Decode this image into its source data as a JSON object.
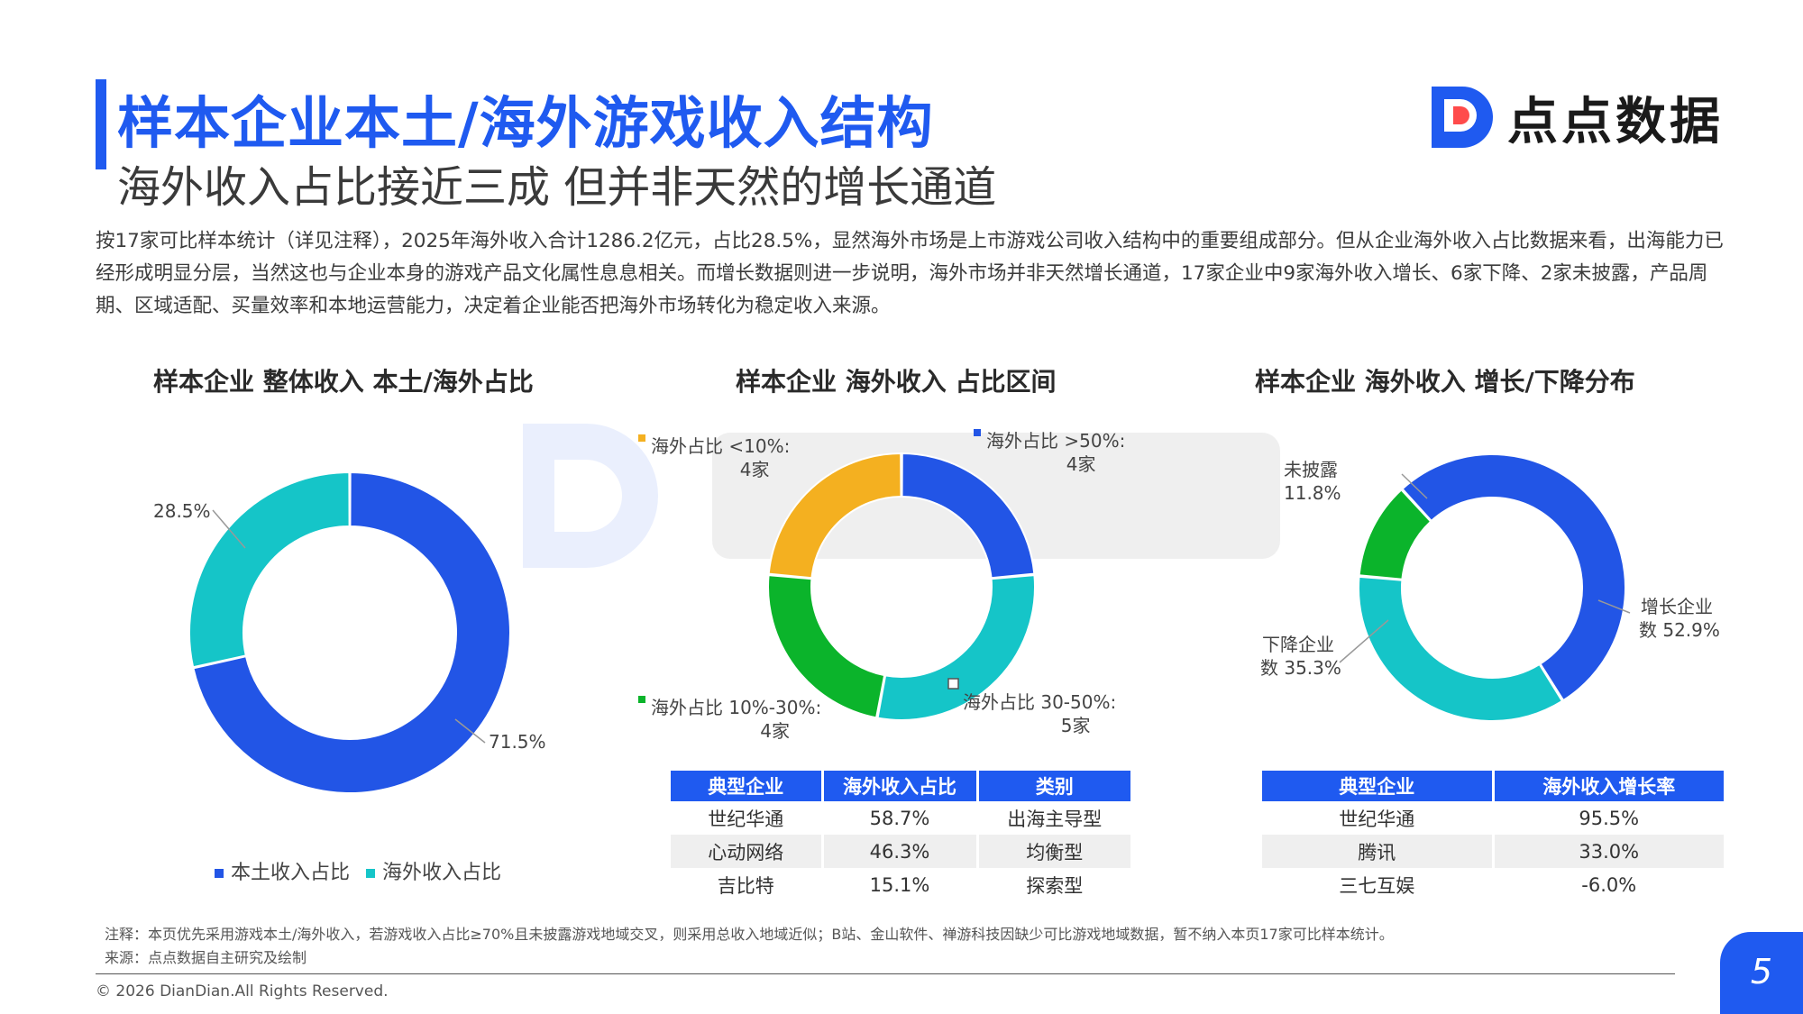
{
  "header": {
    "title": "样本企业本土/海外游戏收入结构",
    "subtitle": "海外收入占比接近三成 但并非天然的增长通道",
    "brand": "点点数据"
  },
  "intro": "按17家可比样本统计（详见注释），2025年海外收入合计1286.2亿元，占比28.5%，显然海外市场是上市游戏公司收入结构中的重要组成部分。但从企业海外收入占比数据来看，出海能力已经形成明显分层，当然这也与企业本身的游戏产品文化属性息息相关。而增长数据则进一步说明，海外市场并非天然增长通道，17家企业中9家海外收入增长、6家下降、2家未披露，产品周期、区域适配、买量效率和本地运营能力，决定着企业能否把海外市场转化为稳定收入来源。",
  "colors": {
    "blue": "#2255e6",
    "teal": "#15c5c8",
    "yellow": "#f4b020",
    "green": "#0bb42b",
    "accent": "#1f5af0"
  },
  "chart_data": [
    {
      "type": "pie",
      "title": "样本企业 整体收入 本土/海外占比",
      "slices": [
        {
          "name": "本土收入占比",
          "value": 71.5,
          "label": "71.5%",
          "color": "#2255e6"
        },
        {
          "name": "海外收入占比",
          "value": 28.5,
          "label": "28.5%",
          "color": "#15c5c8"
        }
      ],
      "legend": [
        "本土收入占比",
        "海外收入占比"
      ],
      "legend_position": "bottom"
    },
    {
      "type": "pie",
      "title": "样本企业 海外收入 占比区间",
      "slices": [
        {
          "name": "海外占比 >50%",
          "value": 4,
          "label_line1": "海外占比 >50%:",
          "label_line2": "4家",
          "color": "#2255e6"
        },
        {
          "name": "海外占比 30-50%",
          "value": 5,
          "label_line1": "海外占比 30-50%:",
          "label_line2": "5家",
          "color": "#15c5c8"
        },
        {
          "name": "海外占比 10%-30%",
          "value": 4,
          "label_line1": "海外占比 10%-30%:",
          "label_line2": "4家",
          "color": "#0bb42b"
        },
        {
          "name": "海外占比 <10%",
          "value": 4,
          "label_line1": "海外占比 <10%:",
          "label_line2": "4家",
          "color": "#f4b020"
        }
      ],
      "table": {
        "headers": [
          "典型企业",
          "海外收入占比",
          "类别"
        ],
        "rows": [
          [
            "世纪华通",
            "58.7%",
            "出海主导型"
          ],
          [
            "心动网络",
            "46.3%",
            "均衡型"
          ],
          [
            "吉比特",
            "15.1%",
            "探索型"
          ]
        ]
      }
    },
    {
      "type": "pie",
      "title": "样本企业 海外收入 增长/下降分布",
      "slices": [
        {
          "name": "增长企业数",
          "value": 52.9,
          "label_line1": "增长企业",
          "label_line2": "数 52.9%",
          "color": "#2255e6"
        },
        {
          "name": "下降企业数",
          "value": 35.3,
          "label_line1": "下降企业",
          "label_line2": "数 35.3%",
          "color": "#15c5c8"
        },
        {
          "name": "未披露",
          "value": 11.8,
          "label_line1": "未披露",
          "label_line2": "11.8%",
          "color": "#0bb42b"
        }
      ],
      "table": {
        "headers": [
          "典型企业",
          "海外收入增长率"
        ],
        "rows": [
          [
            "世纪华通",
            "95.5%"
          ],
          [
            "腾讯",
            "33.0%"
          ],
          [
            "三七互娱",
            "-6.0%"
          ]
        ]
      }
    }
  ],
  "footer": {
    "note": "注释：本页优先采用游戏本土/海外收入，若游戏收入占比≥70%且未披露游戏地域交叉，则采用总收入地域近似；B站、金山软件、禅游科技因缺少可比游戏地域数据，暂不纳入本页17家可比样本统计。",
    "source": "来源：点点数据自主研究及绘制",
    "copyright": "© 2026 DianDian.All Rights Reserved.",
    "page": "5"
  }
}
